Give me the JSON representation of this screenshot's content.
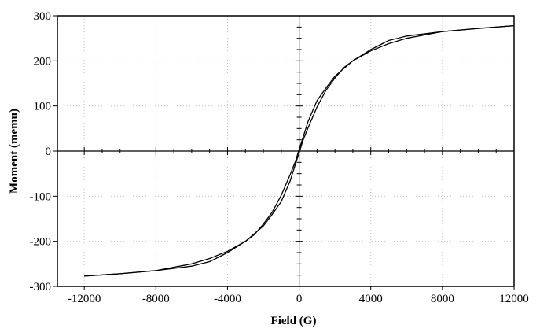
{
  "chart_data": {
    "type": "line",
    "xlabel": "Field (G)",
    "ylabel": "Moment (memu)",
    "xlim": [
      -13500,
      12000
    ],
    "ylim": [
      -300,
      300
    ],
    "x_ticks": [
      -12000,
      -8000,
      -4000,
      0,
      4000,
      8000,
      12000
    ],
    "x_tick_labels": [
      "-12000",
      "-8000",
      "-4000",
      "0",
      "4000",
      "8000",
      "12000"
    ],
    "y_ticks": [
      -300,
      -200,
      -100,
      0,
      100,
      200,
      300
    ],
    "y_tick_labels": [
      "-300",
      "-200",
      "-100",
      "0",
      "100",
      "200",
      "300"
    ],
    "grid": true,
    "legend": "none",
    "line_color": "#000000",
    "series": [
      {
        "x": [
          12000,
          10000,
          8000,
          6000,
          5000,
          4000,
          3000,
          2000,
          1500,
          1000,
          500,
          200,
          0,
          -200,
          -500,
          -1000,
          -1500,
          -2000,
          -2500,
          -3000,
          -4000,
          -5000,
          -6000,
          -8000,
          -10000,
          -12000
        ],
        "y": [
          278,
          272,
          265,
          250,
          238,
          222,
          200,
          166,
          140,
          112,
          66,
          28,
          4,
          -22,
          -52,
          -98,
          -135,
          -162,
          -185,
          -200,
          -225,
          -245,
          -255,
          -265,
          -272,
          -277
        ]
      },
      {
        "x": [
          -12000,
          -10000,
          -8000,
          -6000,
          -5000,
          -4000,
          -3000,
          -2000,
          -1500,
          -1000,
          -500,
          -200,
          0,
          200,
          500,
          1000,
          1500,
          2000,
          2500,
          3000,
          4000,
          5000,
          6000,
          8000,
          10000,
          12000
        ],
        "y": [
          -277,
          -272,
          -265,
          -250,
          -238,
          -222,
          -200,
          -166,
          -140,
          -112,
          -66,
          -28,
          -4,
          22,
          52,
          98,
          135,
          162,
          185,
          200,
          225,
          245,
          255,
          265,
          272,
          278
        ]
      }
    ]
  }
}
